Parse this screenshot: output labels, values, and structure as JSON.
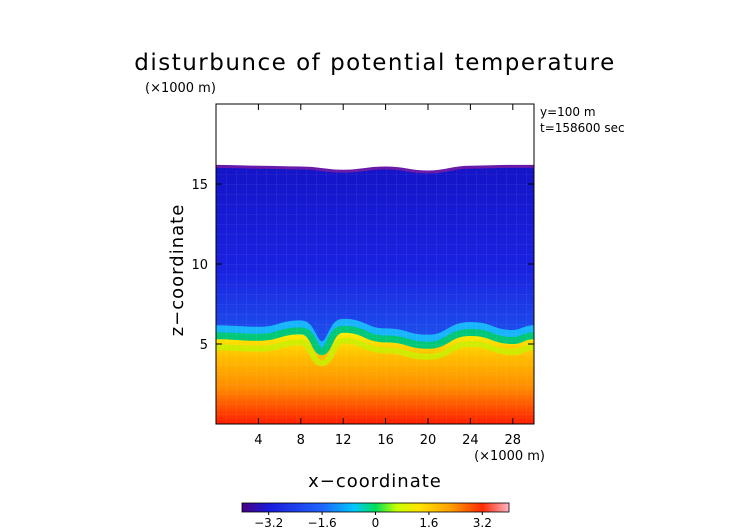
{
  "chart_data": {
    "type": "heatmap",
    "title": "disturbunce of potential temperature",
    "scale_label": "(×1000 m)",
    "xlabel": "x−coordinate",
    "ylabel": "z−coordinate",
    "x_unit_label": "(×1000 m)",
    "annotations": [
      "y=100 m",
      "t=158600 sec"
    ],
    "xlim": [
      0,
      30
    ],
    "ylim": [
      0,
      20
    ],
    "x_ticks": [
      4,
      8,
      12,
      16,
      20,
      24,
      28
    ],
    "x_tick_labels": [
      "4",
      "8",
      "12",
      "16",
      "20",
      "24",
      "28"
    ],
    "y_ticks": [
      5,
      10,
      15
    ],
    "y_tick_labels": [
      "5",
      "10",
      "15"
    ],
    "colorbar": {
      "range": [
        -4,
        4
      ],
      "ticks": [
        -3.2,
        -1.6,
        0,
        1.6,
        3.2
      ],
      "tick_labels": [
        "−3.2",
        "−1.6",
        "0",
        "1.6",
        "3.2"
      ]
    },
    "domain_top_km": [
      [
        0,
        16.1
      ],
      [
        4,
        16.05
      ],
      [
        8,
        16.0
      ],
      [
        12,
        15.8
      ],
      [
        16,
        16.0
      ],
      [
        20,
        15.75
      ],
      [
        24,
        16.05
      ],
      [
        28,
        16.1
      ],
      [
        30,
        16.1
      ]
    ],
    "transition_layer_km": [
      [
        0,
        5.3
      ],
      [
        4,
        5.2
      ],
      [
        8,
        5.6
      ],
      [
        10,
        4.3
      ],
      [
        12,
        5.7
      ],
      [
        16,
        5.1
      ],
      [
        20,
        4.7
      ],
      [
        24,
        5.5
      ],
      [
        28,
        5.0
      ],
      [
        30,
        5.3
      ]
    ],
    "upper_layer_value": -2.6,
    "surface_value": 3.6
  }
}
